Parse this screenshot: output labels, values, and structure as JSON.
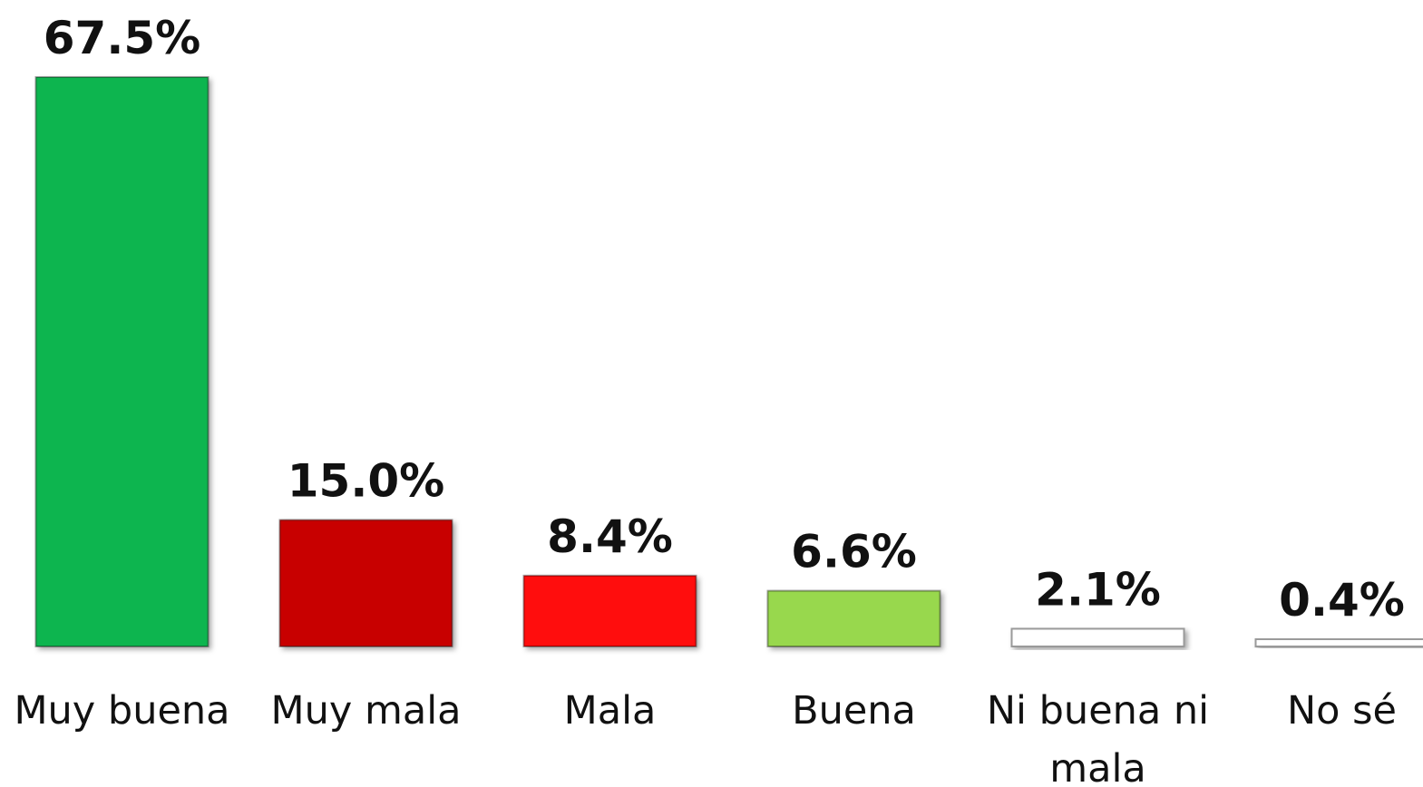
{
  "chart_data": {
    "type": "bar",
    "categories": [
      "Muy buena",
      "Muy mala",
      "Mala",
      "Buena",
      "Ni buena ni mala",
      "No sé"
    ],
    "values": [
      67.5,
      15.0,
      8.4,
      6.6,
      2.1,
      0.4
    ],
    "value_labels": [
      "67.5%",
      "15.0%",
      "8.4%",
      "6.6%",
      "2.1%",
      "0.4%"
    ],
    "colors": [
      "#0bb550",
      "#c80606",
      "#ff0a0a",
      "#98d84e",
      "#ffffff",
      "#ffffff"
    ]
  }
}
